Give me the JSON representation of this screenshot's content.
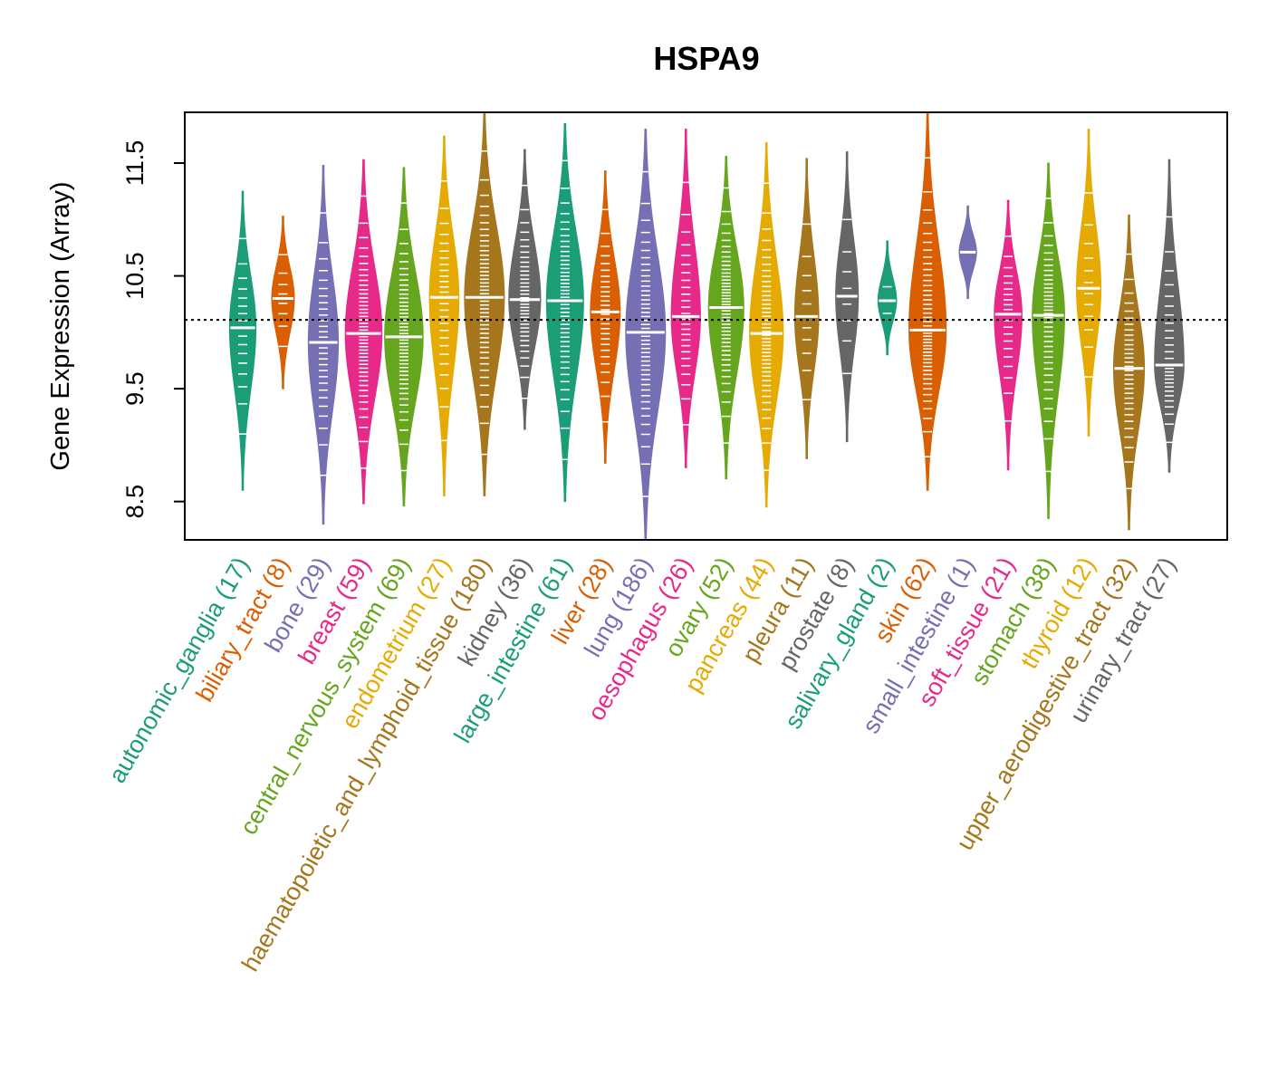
{
  "chart_data": {
    "type": "beanplot",
    "title": "HSPA9",
    "xlabel": "",
    "ylabel": "Gene Expression (Array)",
    "ylim": [
      8.16,
      11.95
    ],
    "yticks": [
      8.5,
      9.5,
      10.5,
      11.5
    ],
    "ytick_labels": [
      "8.5",
      "9.5",
      "10.5",
      "11.5"
    ],
    "reference_line": 10.11,
    "grid": false,
    "colors": [
      "#1B9E77",
      "#D95F02",
      "#7570B3",
      "#E7298A",
      "#66A61E",
      "#E6AB02",
      "#A6761D",
      "#666666"
    ],
    "categories": [
      {
        "name": "autonomic_ganglia",
        "n": 17,
        "count_label": "(17)",
        "median": 10.04,
        "min": 8.6,
        "max": 11.25
      },
      {
        "name": "biliary_tract",
        "n": 8,
        "count_label": "(8)",
        "median": 10.3,
        "min": 9.5,
        "max": 11.03
      },
      {
        "name": "bone",
        "n": 29,
        "count_label": "(29)",
        "median": 9.91,
        "min": 8.3,
        "max": 11.48
      },
      {
        "name": "breast",
        "n": 59,
        "count_label": "(59)",
        "median": 9.99,
        "min": 8.48,
        "max": 11.53
      },
      {
        "name": "central_nervous_system",
        "n": 69,
        "count_label": "(69)",
        "median": 9.96,
        "min": 8.46,
        "max": 11.46
      },
      {
        "name": "endometrium",
        "n": 27,
        "count_label": "(27)",
        "median": 10.31,
        "min": 8.55,
        "max": 11.74
      },
      {
        "name": "haematopoietic_and_lymphoid_tissue",
        "n": 180,
        "count_label": "(180)",
        "median": 10.31,
        "min": 8.55,
        "max": 11.95
      },
      {
        "name": "kidney",
        "n": 36,
        "count_label": "(36)",
        "median": 10.29,
        "min": 9.14,
        "max": 11.62
      },
      {
        "name": "large_intestine",
        "n": 61,
        "count_label": "(61)",
        "median": 10.28,
        "min": 8.5,
        "max": 11.85
      },
      {
        "name": "liver",
        "n": 28,
        "count_label": "(28)",
        "median": 10.18,
        "min": 8.84,
        "max": 11.43
      },
      {
        "name": "lung",
        "n": 186,
        "count_label": "(186)",
        "median": 10.0,
        "min": 8.16,
        "max": 11.8
      },
      {
        "name": "oesophagus",
        "n": 26,
        "count_label": "(26)",
        "median": 10.14,
        "min": 8.8,
        "max": 11.8
      },
      {
        "name": "ovary",
        "n": 52,
        "count_label": "(52)",
        "median": 10.22,
        "min": 8.7,
        "max": 11.56
      },
      {
        "name": "pancreas",
        "n": 44,
        "count_label": "(44)",
        "median": 9.99,
        "min": 8.45,
        "max": 11.68
      },
      {
        "name": "pleura",
        "n": 11,
        "count_label": "(11)",
        "median": 10.14,
        "min": 8.88,
        "max": 11.54
      },
      {
        "name": "prostate",
        "n": 8,
        "count_label": "(8)",
        "median": 10.32,
        "min": 9.03,
        "max": 11.6
      },
      {
        "name": "salivary_gland",
        "n": 2,
        "count_label": "(2)",
        "median": 10.28,
        "min": 9.8,
        "max": 10.81
      },
      {
        "name": "skin",
        "n": 62,
        "count_label": "(62)",
        "median": 10.02,
        "min": 8.6,
        "max": 11.95
      },
      {
        "name": "small_intestine",
        "n": 1,
        "count_label": "(1)",
        "median": 10.71,
        "min": 10.3,
        "max": 11.12
      },
      {
        "name": "soft_tissue",
        "n": 21,
        "count_label": "(21)",
        "median": 10.16,
        "min": 8.78,
        "max": 11.17
      },
      {
        "name": "stomach",
        "n": 38,
        "count_label": "(38)",
        "median": 10.15,
        "min": 8.35,
        "max": 11.5
      },
      {
        "name": "thyroid",
        "n": 12,
        "count_label": "(12)",
        "median": 10.39,
        "min": 9.08,
        "max": 11.8
      },
      {
        "name": "upper_aerodigestive_tract",
        "n": 32,
        "count_label": "(32)",
        "median": 9.68,
        "min": 8.25,
        "max": 11.04
      },
      {
        "name": "urinary_tract",
        "n": 27,
        "count_label": "(27)",
        "median": 9.71,
        "min": 8.76,
        "max": 11.53
      }
    ]
  }
}
